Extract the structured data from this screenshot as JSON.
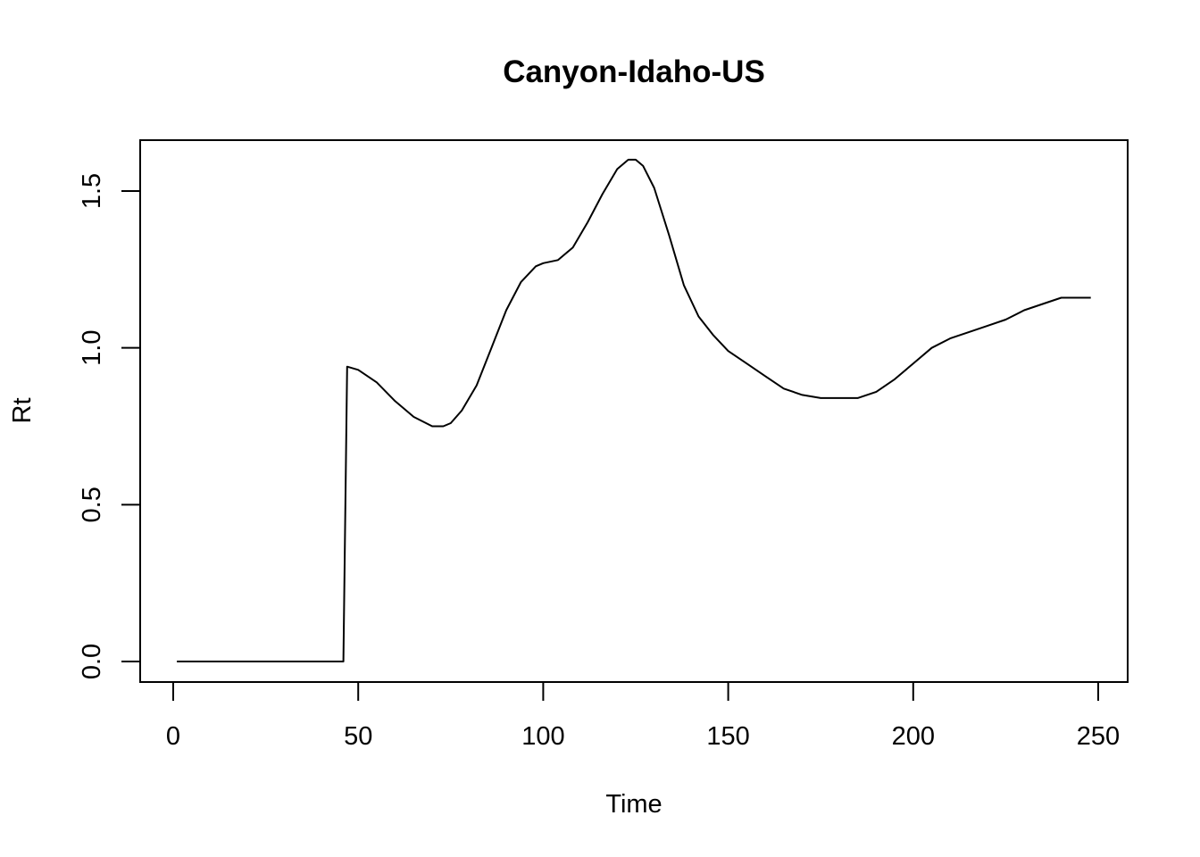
{
  "chart_data": {
    "type": "line",
    "title": "Canyon-Idaho-US",
    "xlabel": "Time",
    "ylabel": "Rt",
    "xlim": [
      0,
      250
    ],
    "ylim": [
      0,
      1.6
    ],
    "x_ticks": [
      0,
      50,
      100,
      150,
      200,
      250
    ],
    "x_tick_labels": [
      "0",
      "50",
      "100",
      "150",
      "200",
      "250"
    ],
    "y_ticks": [
      0.0,
      0.5,
      1.0,
      1.5
    ],
    "y_tick_labels": [
      "0.0",
      "0.5",
      "1.0",
      "1.5"
    ],
    "grid": false,
    "legend": "none",
    "line_color": "#000000",
    "series": [
      {
        "x": [
          1,
          10,
          20,
          30,
          40,
          46,
          47,
          50,
          55,
          60,
          65,
          70,
          73,
          75,
          78,
          82,
          86,
          90,
          94,
          98,
          100,
          104,
          108,
          112,
          116,
          120,
          123,
          125,
          127,
          130,
          134,
          138,
          142,
          146,
          150,
          155,
          160,
          165,
          170,
          175,
          180,
          185,
          190,
          195,
          200,
          205,
          210,
          215,
          220,
          225,
          230,
          235,
          240,
          245,
          248
        ],
        "y": [
          0,
          0,
          0,
          0,
          0,
          0,
          0.94,
          0.93,
          0.89,
          0.83,
          0.78,
          0.75,
          0.75,
          0.76,
          0.8,
          0.88,
          1.0,
          1.12,
          1.21,
          1.26,
          1.27,
          1.28,
          1.32,
          1.4,
          1.49,
          1.57,
          1.6,
          1.6,
          1.58,
          1.51,
          1.36,
          1.2,
          1.1,
          1.04,
          0.99,
          0.95,
          0.91,
          0.87,
          0.85,
          0.84,
          0.84,
          0.84,
          0.86,
          0.9,
          0.95,
          1.0,
          1.03,
          1.05,
          1.07,
          1.09,
          1.12,
          1.14,
          1.16,
          1.16,
          1.16
        ]
      }
    ]
  }
}
